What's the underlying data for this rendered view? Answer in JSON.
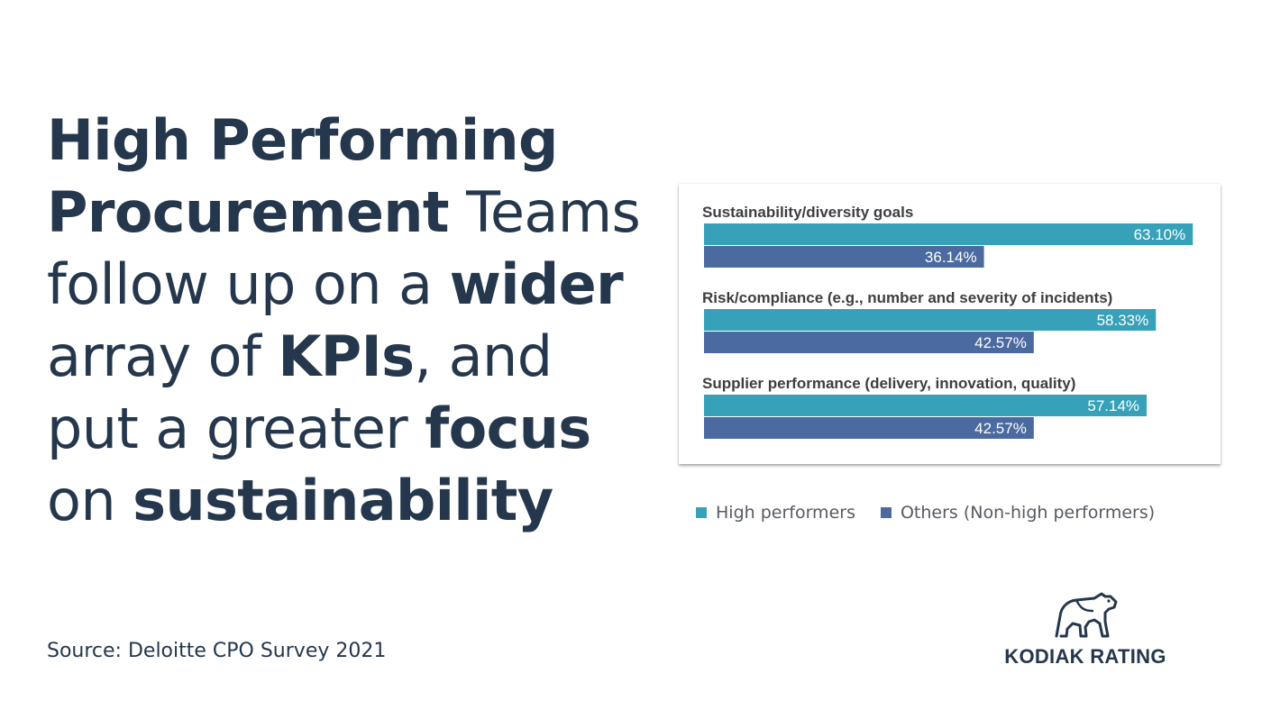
{
  "headline": {
    "l1_b": "High Performing",
    "l2_b": "Procurement",
    "l2_r": " Teams",
    "l3_r": "follow up on a ",
    "l3_b": "wider",
    "l4_r1": "array of ",
    "l4_b": "KPIs",
    "l4_r2": ", and",
    "l5_r": "put a greater ",
    "l5_b": "focus",
    "l6_r": "on ",
    "l6_b": "sustainability"
  },
  "source": "Source: Deloitte CPO Survey 2021",
  "logo": {
    "text": "KODIAK RATING",
    "icon": "bear-icon"
  },
  "colors": {
    "high": "#36a1b9",
    "others": "#4a6aa0",
    "text_dark": "#25374c"
  },
  "chart_data": {
    "type": "bar",
    "orientation": "horizontal",
    "categories": [
      "Sustainability/diversity goals",
      "Risk/compliance (e.g., number and severity of incidents)",
      "Supplier performance (delivery, innovation, quality)"
    ],
    "series": [
      {
        "name": "High performers",
        "values": [
          63.1,
          58.33,
          57.14
        ],
        "labels": [
          "63.10%",
          "58.33%",
          "57.14%"
        ]
      },
      {
        "name": "Others (Non-high performers)",
        "values": [
          36.14,
          42.57,
          42.57
        ],
        "labels": [
          "36.14%",
          "42.57%",
          "42.57%"
        ]
      }
    ],
    "xlim": [
      0,
      64
    ],
    "grid": false,
    "legend_position": "bottom"
  }
}
